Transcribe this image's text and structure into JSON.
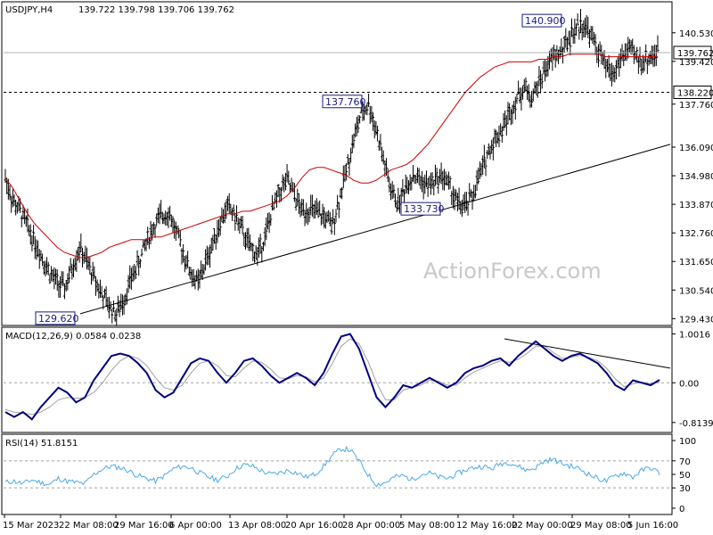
{
  "header": {
    "symbol_tf": "USDJPY,H4",
    "ohlc": "139.722 139.798 139.706 139.762"
  },
  "watermark": "ActionForex.com",
  "colors": {
    "candles": "#000000",
    "ma": "#cc0000",
    "macd": "#000080",
    "signal": "#a0a0a0",
    "rsi": "#4aa8e8",
    "label_box": "#1a1a80",
    "label_fill": "#ffffff"
  },
  "chart_data": [
    {
      "type": "line",
      "panel": "price",
      "title": "USDJPY,H4",
      "yaxis_ticks": [
        "140.530",
        "139.420",
        "137.760",
        "136.090",
        "134.980",
        "133.870",
        "132.760",
        "131.650",
        "130.540",
        "129.430"
      ],
      "yaxis_tick_values": [
        140.53,
        139.42,
        137.76,
        136.09,
        134.98,
        133.87,
        132.76,
        131.65,
        130.54,
        129.43
      ],
      "ylim": [
        129.2,
        141.7
      ],
      "current_price_label": "139.762",
      "current_price": 139.762,
      "level_label": "138.220",
      "level": 138.22,
      "xaxis_ticks": [
        "15 Mar 2023",
        "22 Mar 08:00",
        "29 Mar 16:00",
        "6 Apr 00:00",
        "13 Apr 08:00",
        "20 Apr 16:00",
        "28 Apr 00:00",
        "5 May 08:00",
        "12 May 16:00",
        "22 May 00:00",
        "29 May 08:00",
        "5 Jun 16:00"
      ],
      "callouts": [
        {
          "label": "140.900",
          "value": 140.9
        },
        {
          "label": "137.760",
          "value": 137.76
        },
        {
          "label": "133.730",
          "value": 133.73
        },
        {
          "label": "129.620",
          "value": 129.62
        }
      ],
      "price_path": [
        134.9,
        134.0,
        133.6,
        133.0,
        132.4,
        131.8,
        131.2,
        130.8,
        130.6,
        131.4,
        132.2,
        131.6,
        131.0,
        130.4,
        129.9,
        129.62,
        130.2,
        131.0,
        131.6,
        132.4,
        133.0,
        133.4,
        133.6,
        132.8,
        132.0,
        131.2,
        130.8,
        131.6,
        132.4,
        133.2,
        133.8,
        133.4,
        132.8,
        132.2,
        131.9,
        132.6,
        133.6,
        134.4,
        134.8,
        134.2,
        133.6,
        133.7,
        133.5,
        133.4,
        133.0,
        134.0,
        135.2,
        136.4,
        137.4,
        137.76,
        136.8,
        135.6,
        134.4,
        133.9,
        134.6,
        135.0,
        134.8,
        134.6,
        134.8,
        135.0,
        134.5,
        133.9,
        133.73,
        134.2,
        135.0,
        135.8,
        136.4,
        136.8,
        137.4,
        138.0,
        138.4,
        138.0,
        138.6,
        139.2,
        139.6,
        139.8,
        140.3,
        140.7,
        140.9,
        140.4,
        139.8,
        139.2,
        138.9,
        139.5,
        139.9,
        139.6,
        139.4,
        139.6,
        139.762
      ],
      "ma_path": [
        134.9,
        134.5,
        134.0,
        133.5,
        133.1,
        132.8,
        132.5,
        132.2,
        132.0,
        131.9,
        131.8,
        131.8,
        131.9,
        132.0,
        132.2,
        132.3,
        132.4,
        132.5,
        132.5,
        132.5,
        132.6,
        132.6,
        132.7,
        132.8,
        132.9,
        133.0,
        133.1,
        133.2,
        133.3,
        133.4,
        133.5,
        133.5,
        133.6,
        133.6,
        133.7,
        133.8,
        133.9,
        134.0,
        134.2,
        134.5,
        134.9,
        135.2,
        135.3,
        135.3,
        135.2,
        135.1,
        135.0,
        134.8,
        134.7,
        134.7,
        134.8,
        135.0,
        135.2,
        135.3,
        135.4,
        135.6,
        135.9,
        136.2,
        136.6,
        137.0,
        137.4,
        137.8,
        138.2,
        138.5,
        138.8,
        139.0,
        139.2,
        139.3,
        139.4,
        139.4,
        139.4,
        139.4,
        139.5,
        139.5,
        139.6,
        139.6,
        139.7,
        139.7,
        139.7,
        139.7,
        139.7,
        139.6,
        139.6,
        139.6,
        139.6,
        139.6,
        139.6,
        139.6,
        139.6
      ],
      "trendline": {
        "from": 129.62,
        "to": 136.2
      }
    },
    {
      "type": "line",
      "panel": "macd",
      "title": "MACD(12,26,9) 0.0584 0.0238",
      "yaxis_ticks": [
        "1.0016",
        "0.00",
        "-0.8139"
      ],
      "yaxis_tick_values": [
        1.0016,
        0.0,
        -0.8139
      ],
      "ylim": [
        -1.0,
        1.12
      ],
      "macd_values": [
        -0.6,
        -0.7,
        -0.6,
        -0.75,
        -0.5,
        -0.3,
        -0.1,
        -0.2,
        -0.4,
        -0.3,
        0.05,
        0.3,
        0.55,
        0.6,
        0.55,
        0.4,
        0.2,
        -0.15,
        -0.3,
        -0.2,
        0.1,
        0.4,
        0.5,
        0.45,
        0.2,
        0.0,
        0.2,
        0.45,
        0.5,
        0.35,
        0.15,
        0.0,
        0.1,
        0.2,
        0.1,
        -0.05,
        0.2,
        0.6,
        0.95,
        1.0,
        0.7,
        0.2,
        -0.3,
        -0.5,
        -0.3,
        -0.05,
        -0.1,
        0.0,
        0.1,
        0.0,
        -0.1,
        0.0,
        0.2,
        0.3,
        0.35,
        0.45,
        0.5,
        0.35,
        0.55,
        0.7,
        0.85,
        0.7,
        0.55,
        0.45,
        0.55,
        0.6,
        0.5,
        0.4,
        0.2,
        -0.05,
        -0.15,
        0.05,
        0.0,
        -0.05,
        0.06
      ],
      "signal_values": [
        -0.55,
        -0.6,
        -0.62,
        -0.65,
        -0.6,
        -0.5,
        -0.35,
        -0.3,
        -0.32,
        -0.3,
        -0.2,
        0.0,
        0.25,
        0.45,
        0.55,
        0.5,
        0.35,
        0.1,
        -0.1,
        -0.15,
        -0.05,
        0.2,
        0.4,
        0.45,
        0.35,
        0.15,
        0.12,
        0.3,
        0.45,
        0.42,
        0.28,
        0.1,
        0.08,
        0.15,
        0.12,
        0.02,
        0.1,
        0.4,
        0.75,
        0.9,
        0.8,
        0.45,
        0.0,
        -0.35,
        -0.35,
        -0.15,
        -0.1,
        -0.05,
        0.05,
        0.03,
        -0.05,
        -0.05,
        0.1,
        0.22,
        0.3,
        0.38,
        0.45,
        0.42,
        0.48,
        0.6,
        0.75,
        0.75,
        0.62,
        0.5,
        0.52,
        0.56,
        0.52,
        0.45,
        0.3,
        0.08,
        -0.08,
        -0.02,
        0.01,
        -0.02,
        0.02
      ],
      "trendline": {
        "from": 0.9,
        "to": 0.3
      }
    },
    {
      "type": "line",
      "panel": "rsi",
      "title": "RSI(14) 51.8151",
      "yaxis_ticks": [
        "100",
        "70",
        "50",
        "30",
        "0"
      ],
      "yaxis_tick_values": [
        100,
        70,
        50,
        30,
        0
      ],
      "ylim": [
        -8,
        108
      ],
      "levels": [
        70,
        30
      ],
      "rsi_values": [
        38,
        40,
        36,
        42,
        38,
        35,
        44,
        40,
        38,
        36,
        50,
        58,
        62,
        60,
        55,
        48,
        44,
        40,
        48,
        58,
        62,
        60,
        52,
        46,
        42,
        46,
        58,
        64,
        62,
        55,
        50,
        52,
        56,
        52,
        46,
        50,
        62,
        78,
        88,
        86,
        70,
        50,
        35,
        38,
        46,
        48,
        42,
        50,
        52,
        46,
        44,
        50,
        56,
        60,
        62,
        58,
        66,
        68,
        62,
        56,
        60,
        70,
        72,
        66,
        62,
        58,
        50,
        44,
        40,
        48,
        52,
        46,
        56,
        60,
        51.8
      ]
    }
  ]
}
